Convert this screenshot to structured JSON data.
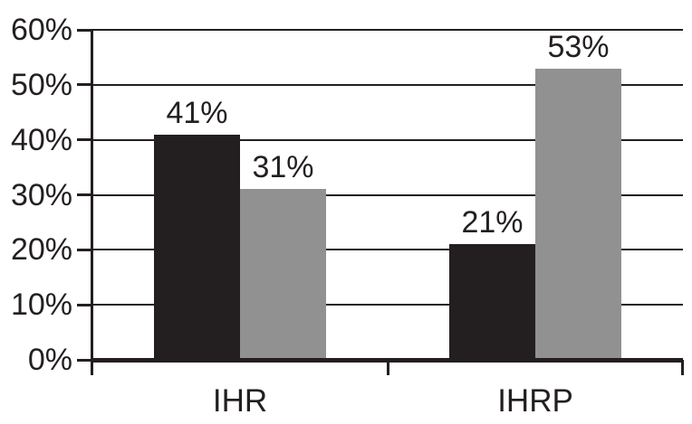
{
  "chart_data": {
    "type": "bar",
    "title": "",
    "xlabel": "",
    "ylabel": "",
    "categories": [
      "IHR",
      "IHRP"
    ],
    "series": [
      {
        "id": "dark",
        "color": "#231f20",
        "values": [
          41,
          21
        ],
        "labels": [
          "41%",
          "21%"
        ]
      },
      {
        "id": "gray",
        "color": "#919191",
        "values": [
          31,
          53
        ],
        "labels": [
          "31%",
          "53%"
        ]
      }
    ],
    "ylim": [
      0,
      60
    ],
    "ytick_step": 10,
    "ytick_labels": [
      "0%",
      "10%",
      "20%",
      "30%",
      "40%",
      "50%",
      "60%"
    ],
    "grid": "horizontal",
    "legend": "none",
    "colors": {
      "background": "#ffffff",
      "text": "#231f20",
      "axis": "#231f20",
      "gridline": "#231f20"
    }
  }
}
